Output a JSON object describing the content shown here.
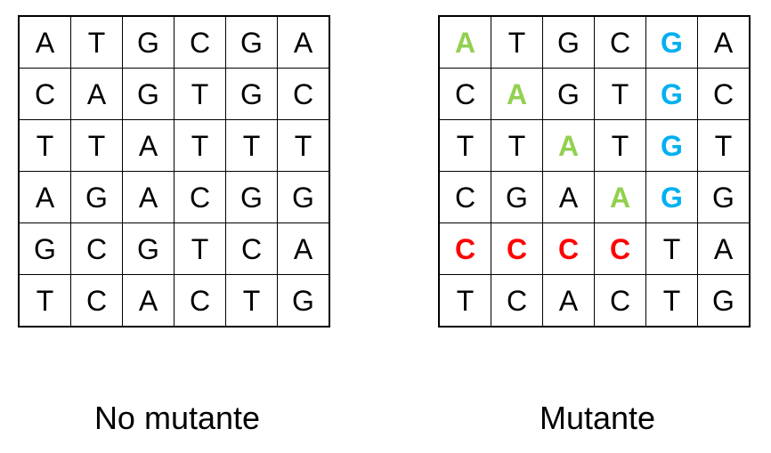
{
  "grids": [
    {
      "caption": "No mutante",
      "rows": [
        [
          "A",
          "T",
          "G",
          "C",
          "G",
          "A"
        ],
        [
          "C",
          "A",
          "G",
          "T",
          "G",
          "C"
        ],
        [
          "T",
          "T",
          "A",
          "T",
          "T",
          "T"
        ],
        [
          "A",
          "G",
          "A",
          "C",
          "G",
          "G"
        ],
        [
          "G",
          "C",
          "G",
          "T",
          "C",
          "A"
        ],
        [
          "T",
          "C",
          "A",
          "C",
          "T",
          "G"
        ]
      ],
      "highlights": []
    },
    {
      "caption": "Mutante",
      "rows": [
        [
          "A",
          "T",
          "G",
          "C",
          "G",
          "A"
        ],
        [
          "C",
          "A",
          "G",
          "T",
          "G",
          "C"
        ],
        [
          "T",
          "T",
          "A",
          "T",
          "G",
          "T"
        ],
        [
          "C",
          "G",
          "A",
          "A",
          "G",
          "G"
        ],
        [
          "C",
          "C",
          "C",
          "C",
          "T",
          "A"
        ],
        [
          "T",
          "C",
          "A",
          "C",
          "T",
          "G"
        ]
      ],
      "highlights": [
        {
          "row": 0,
          "col": 0,
          "color": "green"
        },
        {
          "row": 1,
          "col": 1,
          "color": "green"
        },
        {
          "row": 2,
          "col": 2,
          "color": "green"
        },
        {
          "row": 3,
          "col": 3,
          "color": "green"
        },
        {
          "row": 0,
          "col": 4,
          "color": "blue"
        },
        {
          "row": 1,
          "col": 4,
          "color": "blue"
        },
        {
          "row": 2,
          "col": 4,
          "color": "blue"
        },
        {
          "row": 3,
          "col": 4,
          "color": "blue"
        },
        {
          "row": 4,
          "col": 0,
          "color": "red"
        },
        {
          "row": 4,
          "col": 1,
          "color": "red"
        },
        {
          "row": 4,
          "col": 2,
          "color": "red"
        },
        {
          "row": 4,
          "col": 3,
          "color": "red"
        }
      ]
    }
  ],
  "colors": {
    "green": "#92d050",
    "blue": "#00b0f0",
    "red": "#ff0000"
  }
}
